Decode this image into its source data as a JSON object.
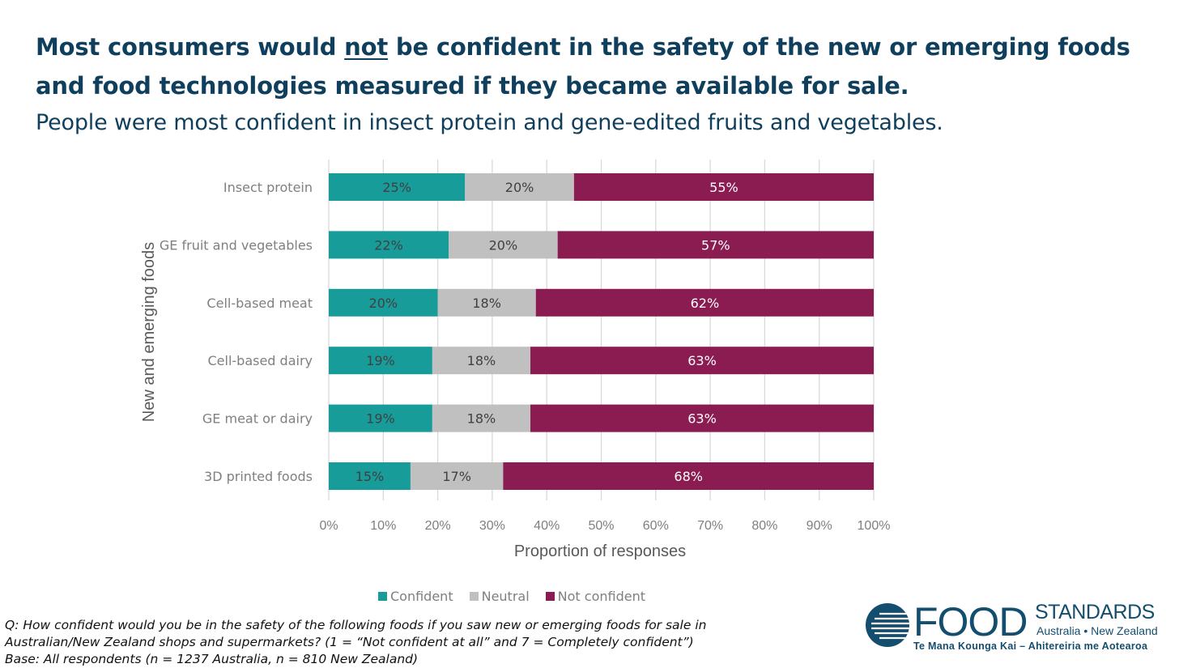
{
  "header": {
    "title_part1": "Most consumers would ",
    "title_emphasis": "not",
    "title_part2": " be confident in the safety of the new or emerging foods and food technologies measured if they became available for sale.",
    "subtitle": "People were most confident in insect protein and gene-edited fruits and vegetables."
  },
  "chart_data": {
    "type": "bar",
    "orientation": "horizontal",
    "stacked": true,
    "categories": [
      "Insect protein",
      "GE fruit and vegetables",
      "Cell-based meat",
      "Cell-based dairy",
      "GE meat or dairy",
      "3D printed foods"
    ],
    "series": [
      {
        "name": "Confident",
        "color": "#189c9a",
        "values": [
          25,
          22,
          20,
          19,
          19,
          15
        ],
        "labels": [
          "25%",
          "22%",
          "20%",
          "19%",
          "19%",
          "15%"
        ]
      },
      {
        "name": "Neutral",
        "color": "#c0c0c0",
        "values": [
          20,
          20,
          18,
          18,
          18,
          17
        ],
        "labels": [
          "20%",
          "20%",
          "18%",
          "18%",
          "18%",
          "17%"
        ]
      },
      {
        "name": "Not confident",
        "color": "#8a1c52",
        "values": [
          55,
          57,
          62,
          63,
          63,
          68
        ],
        "labels": [
          "55%",
          "57%",
          "62%",
          "63%",
          "63%",
          "68%"
        ]
      }
    ],
    "xlabel": "Proportion of responses",
    "ylabel": "New and emerging foods",
    "xlim": [
      0,
      100
    ],
    "xticks": [
      "0%",
      "10%",
      "20%",
      "30%",
      "40%",
      "50%",
      "60%",
      "70%",
      "80%",
      "90%",
      "100%"
    ],
    "grid": true,
    "legend_position": "bottom"
  },
  "footnote": {
    "line1": "Q: How confident would you be in the safety of the following foods if you saw new or emerging foods for sale in",
    "line2": "Australian/New Zealand shops and supermarkets? (1 = “Not confident at all” and 7 = Completely confident”)",
    "line3": "Base: All respondents (n = 1237 Australia, n = 810 New Zealand)"
  },
  "logo": {
    "word1": "FOOD",
    "word2": "STANDARDS",
    "region": "Australia • New Zealand",
    "maori": "Te Mana Kounga Kai – Ahitereiria me Aotearoa",
    "icon": "globe-lines-icon",
    "color": "#144e6e"
  }
}
